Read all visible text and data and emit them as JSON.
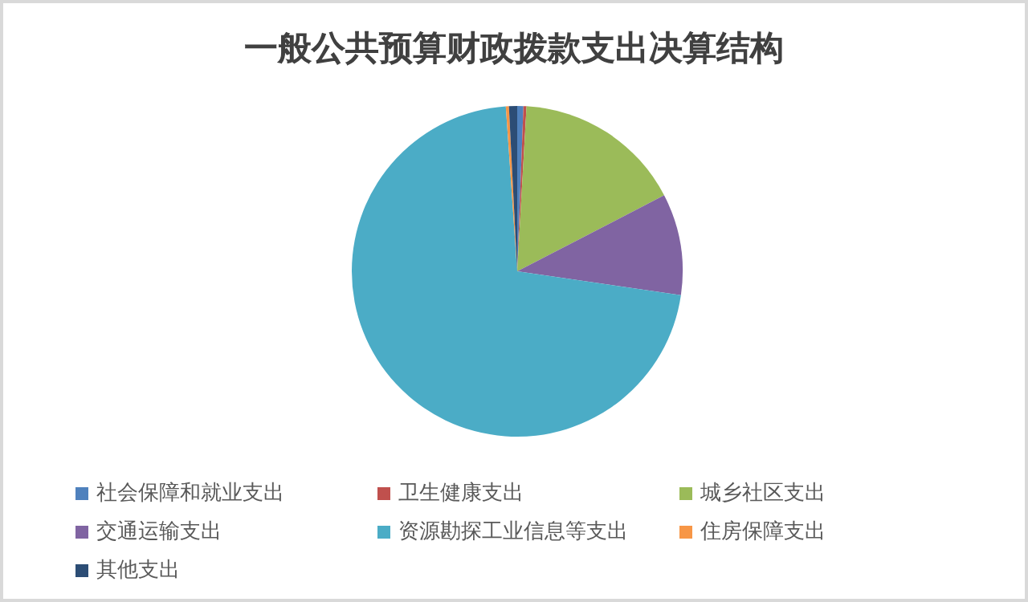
{
  "chart_data": {
    "type": "pie",
    "title": "一般公共预算财政拨款支出决算结构",
    "categories": [
      "社会保障和就业支出",
      "卫生健康支出",
      "城乡社区支出",
      "交通运输支出",
      "资源勘探工业信息等支出",
      "住房保障支出",
      "其他支出"
    ],
    "values": [
      0.6,
      0.3,
      16.5,
      9.9,
      71.6,
      0.3,
      0.8
    ],
    "colors": [
      "#4f81bd",
      "#c0504d",
      "#9bbb59",
      "#8064a2",
      "#4bacc6",
      "#f79646",
      "#2c4d75"
    ],
    "legend": "bottom"
  }
}
